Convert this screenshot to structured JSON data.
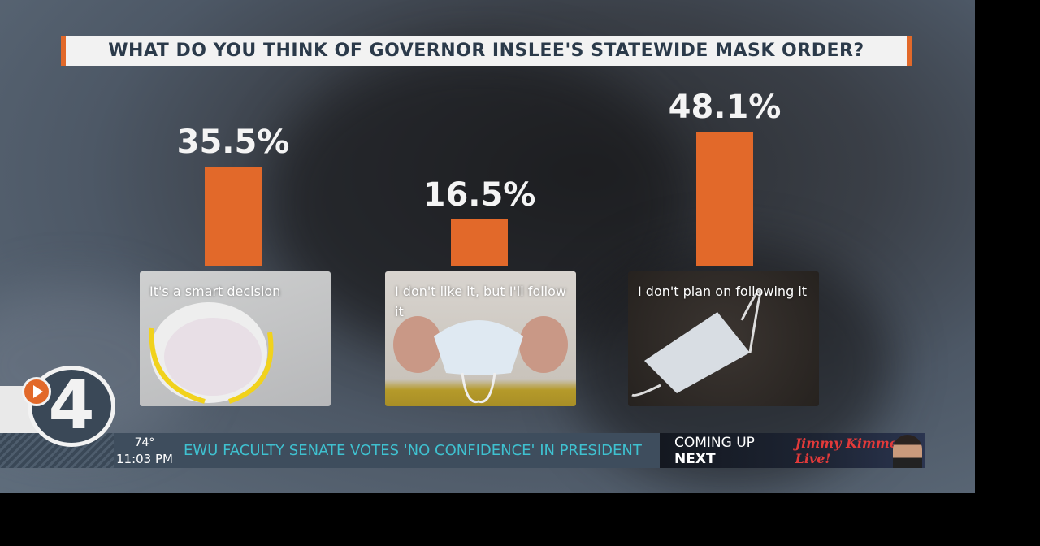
{
  "title": "WHAT DO YOU THINK OF GOVERNOR INSLEE'S STATEWIDE MASK ORDER?",
  "chart_data": {
    "type": "bar",
    "title": "WHAT DO YOU THINK OF GOVERNOR INSLEE'S STATEWIDE MASK ORDER?",
    "categories": [
      "It's a smart decision",
      "I don't like it, but I'll follow it",
      "I don't plan on following it"
    ],
    "values": [
      35.5,
      16.5,
      48.1
    ],
    "value_labels": [
      "35.5%",
      "16.5%",
      "48.1%"
    ],
    "ylim": [
      0,
      50
    ],
    "grid": false,
    "bar_color": "#e2692a"
  },
  "ticker": {
    "logo": "4",
    "temperature": "74°",
    "time": "11:03 PM",
    "headline": "EWU FACULTY SENATE VOTES 'NO CONFIDENCE' IN PRESIDENT",
    "coming_up": "COMING UP",
    "next": "NEXT",
    "show": "Jimmy Kimmel Live!",
    "headline_color": "#3fc1d0"
  }
}
